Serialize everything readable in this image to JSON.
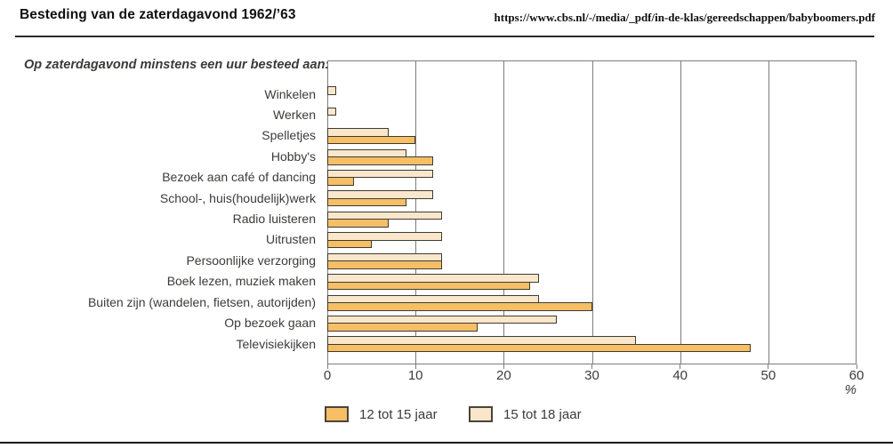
{
  "header": {
    "title": "Besteding van de zaterdagavond 1962/’63",
    "source_url": "https://www.cbs.nl/-/media/_pdf/in-de-klas/gereedschappen/babyboomers.pdf"
  },
  "chart_data": {
    "type": "bar",
    "orientation": "horizontal",
    "subtitle": "Op zaterdagavond minstens een uur besteed aan:",
    "categories": [
      "Winkelen",
      "Werken",
      "Spelletjes",
      "Hobby's",
      "Bezoek aan café of dancing",
      "School-, huis(houdelijk)werk",
      "Radio luisteren",
      "Uitrusten",
      "Persoonlijke verzorging",
      "Boek lezen, muziek maken",
      "Buiten zijn (wandelen, fietsen, autorijden)",
      "Op bezoek gaan",
      "Televisiekijken"
    ],
    "series": [
      {
        "name": "12 tot 15 jaar",
        "color": "#F6BF65",
        "values": [
          0,
          0,
          10,
          12,
          3,
          9,
          7,
          5,
          13,
          23,
          30,
          17,
          48
        ]
      },
      {
        "name": "15 tot 18 jaar",
        "color": "#FAE7CB",
        "values": [
          1,
          1,
          7,
          9,
          12,
          12,
          13,
          13,
          13,
          24,
          24,
          26,
          35
        ]
      }
    ],
    "xlabel": "%",
    "xlim": [
      0,
      60
    ],
    "xticks": [
      0,
      10,
      20,
      30,
      40,
      50,
      60
    ],
    "grid": true,
    "legend_position": "bottom",
    "bar_border_color": "#3e3b31",
    "grid_color": "#7d7d7d"
  }
}
